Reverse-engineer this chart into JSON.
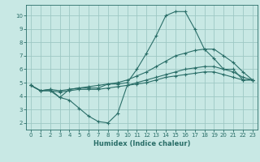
{
  "xlabel": "Humidex (Indice chaleur)",
  "background_color": "#c8e8e4",
  "grid_color": "#9dc8c4",
  "line_color": "#2a6e68",
  "xlim": [
    -0.5,
    23.5
  ],
  "ylim": [
    1.5,
    10.8
  ],
  "yticks": [
    2,
    3,
    4,
    5,
    6,
    7,
    8,
    9,
    10
  ],
  "xticks": [
    0,
    1,
    2,
    3,
    4,
    5,
    6,
    7,
    8,
    9,
    10,
    11,
    12,
    13,
    14,
    15,
    16,
    17,
    18,
    19,
    20,
    21,
    22,
    23
  ],
  "curves": [
    {
      "x": [
        0,
        1,
        2,
        3,
        4,
        5,
        6,
        7,
        8,
        9,
        10,
        11,
        12,
        13,
        14,
        15,
        16,
        17,
        18,
        19,
        20,
        21,
        22,
        23
      ],
      "y": [
        4.8,
        4.4,
        4.5,
        3.9,
        4.5,
        4.6,
        4.6,
        4.6,
        4.9,
        4.9,
        5.0,
        6.0,
        7.2,
        8.5,
        10.0,
        10.3,
        10.3,
        9.0,
        7.5,
        6.8,
        6.0,
        6.0,
        5.2,
        5.2
      ]
    },
    {
      "x": [
        0,
        1,
        2,
        3,
        4,
        5,
        6,
        7,
        8,
        9,
        10,
        11,
        12,
        13,
        14,
        15,
        16,
        17,
        18,
        19,
        20,
        21,
        22,
        23
      ],
      "y": [
        4.8,
        4.4,
        4.5,
        4.4,
        4.5,
        4.6,
        4.7,
        4.8,
        4.9,
        5.0,
        5.2,
        5.5,
        5.8,
        6.2,
        6.6,
        7.0,
        7.2,
        7.4,
        7.5,
        7.5,
        7.0,
        6.5,
        5.8,
        5.2
      ]
    },
    {
      "x": [
        0,
        1,
        2,
        3,
        4,
        5,
        6,
        7,
        8,
        9,
        10,
        11,
        12,
        13,
        14,
        15,
        16,
        17,
        18,
        19,
        20,
        21,
        22,
        23
      ],
      "y": [
        4.8,
        4.4,
        4.4,
        4.3,
        4.4,
        4.5,
        4.5,
        4.5,
        4.6,
        4.7,
        4.8,
        5.0,
        5.2,
        5.4,
        5.6,
        5.8,
        6.0,
        6.1,
        6.2,
        6.2,
        6.0,
        5.8,
        5.4,
        5.2
      ]
    },
    {
      "x": [
        0,
        1,
        2,
        3,
        4,
        5,
        6,
        7,
        8,
        9,
        10,
        11,
        12,
        13,
        14,
        15,
        16,
        17,
        18,
        19,
        20,
        21,
        22,
        23
      ],
      "y": [
        4.8,
        4.4,
        4.4,
        3.9,
        3.7,
        3.1,
        2.5,
        2.1,
        2.0,
        2.7,
        4.8,
        4.9,
        5.0,
        5.2,
        5.4,
        5.5,
        5.6,
        5.7,
        5.8,
        5.8,
        5.6,
        5.4,
        5.2,
        5.2
      ]
    }
  ]
}
